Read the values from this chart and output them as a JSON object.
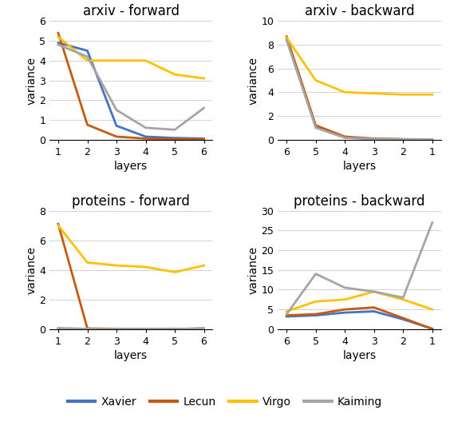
{
  "arxiv_forward": {
    "title": "arxiv - forward",
    "xlabel": "layers",
    "ylabel": "variance",
    "xticks": [
      1,
      2,
      3,
      4,
      5,
      6
    ],
    "ylim": [
      0,
      6
    ],
    "yticks": [
      0,
      1,
      2,
      3,
      4,
      5,
      6
    ],
    "series": {
      "Xavier": [
        4.9,
        4.5,
        0.7,
        0.15,
        0.08,
        0.05
      ],
      "Lecun": [
        5.4,
        0.75,
        0.15,
        0.05,
        0.02,
        0.01
      ],
      "Virgo": [
        5.2,
        4.0,
        4.0,
        4.0,
        3.3,
        3.1
      ],
      "Kaiming": [
        4.8,
        4.2,
        1.5,
        0.6,
        0.5,
        1.6
      ]
    }
  },
  "arxiv_backward": {
    "title": "arxiv - backward",
    "xlabel": "layers",
    "ylabel": "variance",
    "xticks": [
      6,
      5,
      4,
      3,
      2,
      1
    ],
    "ylim": [
      0,
      10
    ],
    "yticks": [
      0,
      2,
      4,
      6,
      8,
      10
    ],
    "series": {
      "Xavier": [
        8.5,
        1.1,
        0.2,
        0.05,
        0.02,
        0.01
      ],
      "Lecun": [
        8.7,
        1.2,
        0.25,
        0.08,
        0.03,
        0.01
      ],
      "Virgo": [
        8.6,
        5.0,
        4.0,
        3.9,
        3.8,
        3.8
      ],
      "Kaiming": [
        8.4,
        1.0,
        0.15,
        0.04,
        0.02,
        0.01
      ]
    }
  },
  "proteins_forward": {
    "title": "proteins - forward",
    "xlabel": "layers",
    "ylabel": "variance",
    "xticks": [
      1,
      2,
      3,
      4,
      5,
      6
    ],
    "ylim": [
      0,
      8
    ],
    "yticks": [
      0,
      2,
      4,
      6,
      8
    ],
    "series": {
      "Xavier": [
        0.05,
        0.02,
        0.01,
        0.01,
        0.01,
        0.05
      ],
      "Lecun": [
        7.1,
        0.05,
        0.02,
        0.01,
        0.01,
        0.02
      ],
      "Virgo": [
        7.0,
        4.5,
        4.3,
        4.2,
        3.85,
        4.3
      ],
      "Kaiming": [
        0.05,
        0.02,
        0.01,
        0.01,
        0.01,
        0.05
      ]
    }
  },
  "proteins_backward": {
    "title": "proteins - backward",
    "xlabel": "layers",
    "ylabel": "variance",
    "xticks": [
      6,
      5,
      4,
      3,
      2,
      1
    ],
    "ylim": [
      0,
      30
    ],
    "yticks": [
      0,
      5,
      10,
      15,
      20,
      25,
      30
    ],
    "series": {
      "Xavier": [
        3.2,
        3.5,
        4.2,
        4.5,
        2.5,
        0.1
      ],
      "Lecun": [
        3.5,
        3.8,
        5.0,
        5.5,
        2.8,
        0.05
      ],
      "Virgo": [
        4.5,
        7.0,
        7.5,
        9.5,
        7.5,
        5.0
      ],
      "Kaiming": [
        3.8,
        14.0,
        10.5,
        9.5,
        8.0,
        27.0
      ]
    }
  },
  "colors": {
    "Xavier": "#4472C4",
    "Lecun": "#C55A11",
    "Virgo": "#FFC000",
    "Kaiming": "#A5A5A5"
  },
  "linewidth": 2.0,
  "legend_fontsize": 10,
  "title_fontsize": 12,
  "axis_label_fontsize": 10,
  "tick_fontsize": 9
}
